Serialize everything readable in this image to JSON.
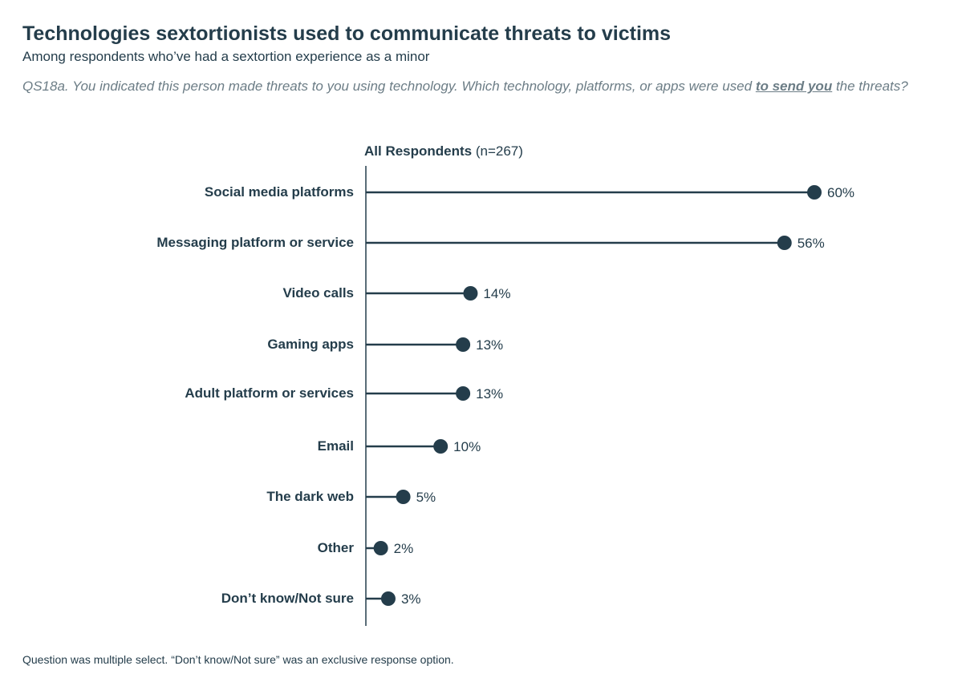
{
  "header": {
    "title": "Technologies sextortionists used to communicate threats to victims",
    "subtitle": "Among respondents who’ve had a sextortion experience as a minor",
    "question_prefix": "QS18a. You indicated this person made threats to you using technology. Which technology, platforms, or apps were used ",
    "question_emphasis": "to send you",
    "question_suffix": " the threats?"
  },
  "footnote": "Question was multiple select. “Don’t know/Not sure” was an exclusive response option.",
  "colors": {
    "primary": "#243d4b",
    "muted": "#6c7d86"
  },
  "chart_data": {
    "type": "bar",
    "style": "lollipop",
    "title": "All Respondents",
    "n_label": "(n=267)",
    "categories": [
      "Social media platforms",
      "Messaging platform or service",
      "Video calls",
      "Gaming apps",
      "Adult platform or services",
      "Email",
      "The dark web",
      "Other",
      "Don’t know/Not sure"
    ],
    "values": [
      60,
      56,
      14,
      13,
      13,
      10,
      5,
      2,
      3
    ],
    "labels": [
      "60%",
      "56%",
      "14%",
      "13%",
      "13%",
      "10%",
      "5%",
      "2%",
      "3%"
    ],
    "xlim": [
      0,
      60
    ],
    "unit": "%",
    "grid": false
  }
}
